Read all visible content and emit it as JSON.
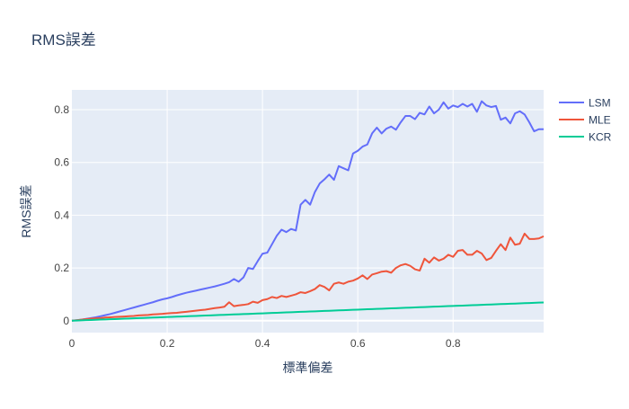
{
  "colors": {
    "plot_bg": "#e5ecf6",
    "grid": "#ffffff",
    "text": "#2a3f5f",
    "tick_text": "#444444"
  },
  "chart_data": {
    "type": "line",
    "title": "RMS誤差",
    "xlabel": "標準偏差",
    "ylabel": "RMS誤差",
    "xlim": [
      0,
      0.99
    ],
    "ylim": [
      -0.045,
      0.875
    ],
    "xticks": [
      0,
      0.2,
      0.4,
      0.6,
      0.8
    ],
    "xtick_labels": [
      "0",
      "0.2",
      "0.4",
      "0.6",
      "0.8"
    ],
    "yticks": [
      0,
      0.2,
      0.4,
      0.6,
      0.8
    ],
    "ytick_labels": [
      "0",
      "0.2",
      "0.4",
      "0.6",
      "0.8"
    ],
    "grid": true,
    "legend_position": "top-right",
    "x": [
      0,
      0.01,
      0.02,
      0.03,
      0.04,
      0.05,
      0.06,
      0.07,
      0.08,
      0.09,
      0.1,
      0.11,
      0.12,
      0.13,
      0.14,
      0.15,
      0.16,
      0.17,
      0.18,
      0.19,
      0.2,
      0.21,
      0.22,
      0.23,
      0.24,
      0.25,
      0.26,
      0.27,
      0.28,
      0.29,
      0.3,
      0.31,
      0.32,
      0.33,
      0.34,
      0.35,
      0.36,
      0.37,
      0.38,
      0.39,
      0.4,
      0.41,
      0.42,
      0.43,
      0.44,
      0.45,
      0.46,
      0.47,
      0.48,
      0.49,
      0.5,
      0.51,
      0.52,
      0.53,
      0.54,
      0.55,
      0.56,
      0.57,
      0.58,
      0.59,
      0.6,
      0.61,
      0.62,
      0.63,
      0.64,
      0.65,
      0.66,
      0.67,
      0.68,
      0.69,
      0.7,
      0.71,
      0.72,
      0.73,
      0.74,
      0.75,
      0.76,
      0.77,
      0.78,
      0.79,
      0.8,
      0.81,
      0.82,
      0.83,
      0.84,
      0.85,
      0.86,
      0.87,
      0.88,
      0.89,
      0.9,
      0.91,
      0.92,
      0.93,
      0.94,
      0.95,
      0.96,
      0.97,
      0.98,
      0.99
    ],
    "series": [
      {
        "name": "LSM",
        "color": "#636efa",
        "values": [
          0,
          0.002,
          0.004,
          0.007,
          0.01,
          0.013,
          0.017,
          0.021,
          0.025,
          0.03,
          0.035,
          0.04,
          0.045,
          0.05,
          0.055,
          0.06,
          0.065,
          0.07,
          0.076,
          0.081,
          0.085,
          0.09,
          0.096,
          0.101,
          0.106,
          0.11,
          0.114,
          0.118,
          0.122,
          0.126,
          0.13,
          0.135,
          0.14,
          0.146,
          0.158,
          0.148,
          0.164,
          0.2,
          0.196,
          0.226,
          0.254,
          0.258,
          0.29,
          0.322,
          0.345,
          0.336,
          0.348,
          0.342,
          0.44,
          0.458,
          0.44,
          0.488,
          0.52,
          0.536,
          0.554,
          0.534,
          0.586,
          0.578,
          0.57,
          0.634,
          0.644,
          0.66,
          0.668,
          0.71,
          0.732,
          0.71,
          0.728,
          0.736,
          0.724,
          0.752,
          0.776,
          0.776,
          0.764,
          0.788,
          0.782,
          0.812,
          0.786,
          0.8,
          0.828,
          0.804,
          0.816,
          0.81,
          0.822,
          0.812,
          0.822,
          0.792,
          0.832,
          0.816,
          0.81,
          0.814,
          0.762,
          0.77,
          0.748,
          0.786,
          0.794,
          0.782,
          0.752,
          0.718,
          0.726,
          0.726
        ]
      },
      {
        "name": "MLE",
        "color": "#ef553b",
        "values": [
          0,
          0.002,
          0.004,
          0.006,
          0.008,
          0.009,
          0.01,
          0.012,
          0.013,
          0.014,
          0.015,
          0.016,
          0.017,
          0.018,
          0.02,
          0.021,
          0.022,
          0.024,
          0.025,
          0.026,
          0.028,
          0.029,
          0.03,
          0.032,
          0.034,
          0.036,
          0.038,
          0.04,
          0.042,
          0.045,
          0.048,
          0.05,
          0.053,
          0.07,
          0.055,
          0.058,
          0.06,
          0.063,
          0.072,
          0.068,
          0.078,
          0.082,
          0.09,
          0.086,
          0.094,
          0.09,
          0.095,
          0.1,
          0.108,
          0.105,
          0.112,
          0.12,
          0.135,
          0.128,
          0.115,
          0.14,
          0.145,
          0.14,
          0.148,
          0.152,
          0.16,
          0.172,
          0.158,
          0.175,
          0.18,
          0.186,
          0.188,
          0.182,
          0.2,
          0.21,
          0.215,
          0.208,
          0.195,
          0.19,
          0.235,
          0.22,
          0.24,
          0.228,
          0.235,
          0.25,
          0.242,
          0.265,
          0.268,
          0.25,
          0.25,
          0.265,
          0.255,
          0.23,
          0.238,
          0.265,
          0.29,
          0.268,
          0.315,
          0.288,
          0.292,
          0.33,
          0.31,
          0.31,
          0.312,
          0.32
        ]
      },
      {
        "name": "KCR",
        "color": "#00cc96",
        "values": [
          0,
          0.0007,
          0.0014,
          0.0021,
          0.0028,
          0.0035,
          0.0042,
          0.0049,
          0.0056,
          0.0063,
          0.007,
          0.0077,
          0.0084,
          0.0091,
          0.0098,
          0.0105,
          0.0112,
          0.0119,
          0.0126,
          0.0133,
          0.014,
          0.0147,
          0.0154,
          0.0161,
          0.0168,
          0.0175,
          0.0182,
          0.0189,
          0.0196,
          0.0203,
          0.021,
          0.0217,
          0.0224,
          0.0231,
          0.0238,
          0.0245,
          0.0252,
          0.0259,
          0.0266,
          0.0273,
          0.028,
          0.0287,
          0.0294,
          0.0301,
          0.0308,
          0.0315,
          0.0322,
          0.0329,
          0.0336,
          0.0343,
          0.035,
          0.0357,
          0.0364,
          0.0371,
          0.0378,
          0.0385,
          0.0392,
          0.0399,
          0.0406,
          0.0413,
          0.042,
          0.0427,
          0.0434,
          0.0441,
          0.0448,
          0.0455,
          0.0462,
          0.0469,
          0.0476,
          0.0483,
          0.049,
          0.0497,
          0.0504,
          0.0511,
          0.0518,
          0.0525,
          0.0532,
          0.0539,
          0.0546,
          0.0553,
          0.056,
          0.0567,
          0.0574,
          0.0581,
          0.0588,
          0.0595,
          0.0602,
          0.0609,
          0.0616,
          0.0623,
          0.063,
          0.0637,
          0.0644,
          0.0651,
          0.0658,
          0.0665,
          0.0672,
          0.0679,
          0.0686,
          0.0693
        ]
      }
    ]
  }
}
